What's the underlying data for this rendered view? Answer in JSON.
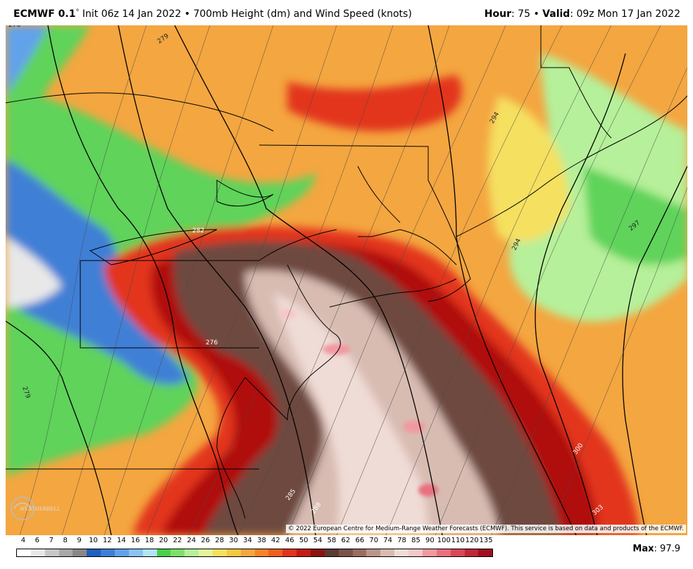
{
  "header": {
    "model": "ECMWF 0.1",
    "degree": "°",
    "init_text": "Init 06z 14 Jan 2022",
    "separator": "•",
    "field": "700mb Height (dm) and Wind Speed (knots)",
    "hour_label": "Hour",
    "hour_value": ": 75",
    "valid_label": "Valid",
    "valid_value": ": 09z Mon 17 Jan 2022"
  },
  "map": {
    "contour_labels": [
      "276",
      "279",
      "282",
      "285",
      "288",
      "294",
      "294",
      "297",
      "300",
      "303",
      "276",
      "279",
      "279"
    ],
    "copyright": "© 2022 European Centre for Medium-Range Weather Forecasts (ECMWF). This service is based on data and products of the ECMWF.",
    "logo_text": "WEATHERBELL",
    "colors": {
      "calm": "#ffffff",
      "blue": "#3f7fd6",
      "light_blue": "#9ad4f2",
      "green": "#5fd35a",
      "light_green": "#b6f09a",
      "yellow": "#f5f08a",
      "orange": "#f4a640",
      "red": "#e2341e",
      "dark_red": "#b0100e",
      "brown": "#6e4a40",
      "pink": "#f4d4d0"
    }
  },
  "colorbar": {
    "labels": [
      "4",
      "6",
      "7",
      "8",
      "9",
      "10",
      "12",
      "14",
      "16",
      "18",
      "20",
      "22",
      "24",
      "26",
      "28",
      "30",
      "34",
      "38",
      "42",
      "46",
      "50",
      "54",
      "58",
      "62",
      "66",
      "70",
      "74",
      "78",
      "85",
      "90",
      "100",
      "110",
      "120",
      "135"
    ],
    "colors": [
      "#ffffff",
      "#e8e8e8",
      "#c8c8c8",
      "#a8a8a8",
      "#888888",
      "#1f5fc0",
      "#3f7fd6",
      "#62a2ea",
      "#89c4f4",
      "#b2e4f8",
      "#48d04a",
      "#7ee06a",
      "#b6f09a",
      "#e4f59a",
      "#f5e060",
      "#f5c840",
      "#f4a640",
      "#f4842a",
      "#f0601e",
      "#e2341e",
      "#c41a14",
      "#8c1210",
      "#5a3a34",
      "#7a5248",
      "#9a6e62",
      "#ba968a",
      "#d8bcb2",
      "#f0dcd6",
      "#f4c8c8",
      "#f09aa0",
      "#e87080",
      "#d84858",
      "#c02838",
      "#a01020"
    ]
  },
  "max_label": "Max",
  "max_value": ": 97.9"
}
